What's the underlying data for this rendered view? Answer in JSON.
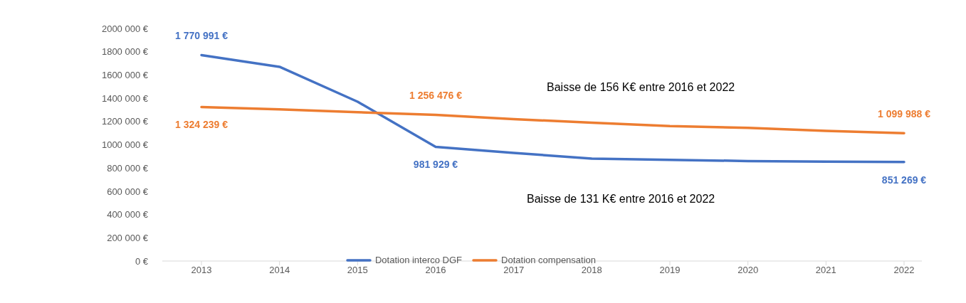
{
  "chart_data": {
    "type": "line",
    "categories": [
      "2013",
      "2014",
      "2015",
      "2016",
      "2017",
      "2018",
      "2019",
      "2020",
      "2021",
      "2022"
    ],
    "series": [
      {
        "name": "Dotation interco DGF",
        "color": "#4472c4",
        "values": [
          1770991,
          1670000,
          1370000,
          981929,
          930000,
          880000,
          870000,
          860000,
          855000,
          851269
        ],
        "value_labels": [
          "1 770 991 €",
          null,
          null,
          "981 929 €",
          null,
          null,
          null,
          null,
          null,
          "851 269 €"
        ]
      },
      {
        "name": "Dotation compensation",
        "color": "#ed7d31",
        "values": [
          1324239,
          1305000,
          1280000,
          1256476,
          1220000,
          1190000,
          1160000,
          1145000,
          1120000,
          1099988
        ],
        "value_labels": [
          "1 324 239 €",
          null,
          null,
          "1 256 476 €",
          null,
          null,
          null,
          null,
          null,
          "1 099 988 €"
        ]
      }
    ],
    "ylim": [
      0,
      2000000
    ],
    "yticks": [
      {
        "value": 0,
        "label": "0 €"
      },
      {
        "value": 200000,
        "label": "200 000 €"
      },
      {
        "value": 400000,
        "label": "400 000 €"
      },
      {
        "value": 600000,
        "label": "600 000 €"
      },
      {
        "value": 800000,
        "label": "800 000 €"
      },
      {
        "value": 1000000,
        "label": "1000 000 €"
      },
      {
        "value": 1200000,
        "label": "1200 000 €"
      },
      {
        "value": 1400000,
        "label": "1400 000 €"
      },
      {
        "value": 1600000,
        "label": "1600 000 €"
      },
      {
        "value": 1800000,
        "label": "1800 000 €"
      },
      {
        "value": 2000000,
        "label": "2000 000 €"
      }
    ],
    "annotations": [
      "Baisse de 156 K€ entre 2016 et 2022",
      "Baisse de 131 K€ entre 2016 et 2022"
    ],
    "legend": "bottom",
    "grid": false,
    "marker": "none",
    "line_style": "solid"
  }
}
